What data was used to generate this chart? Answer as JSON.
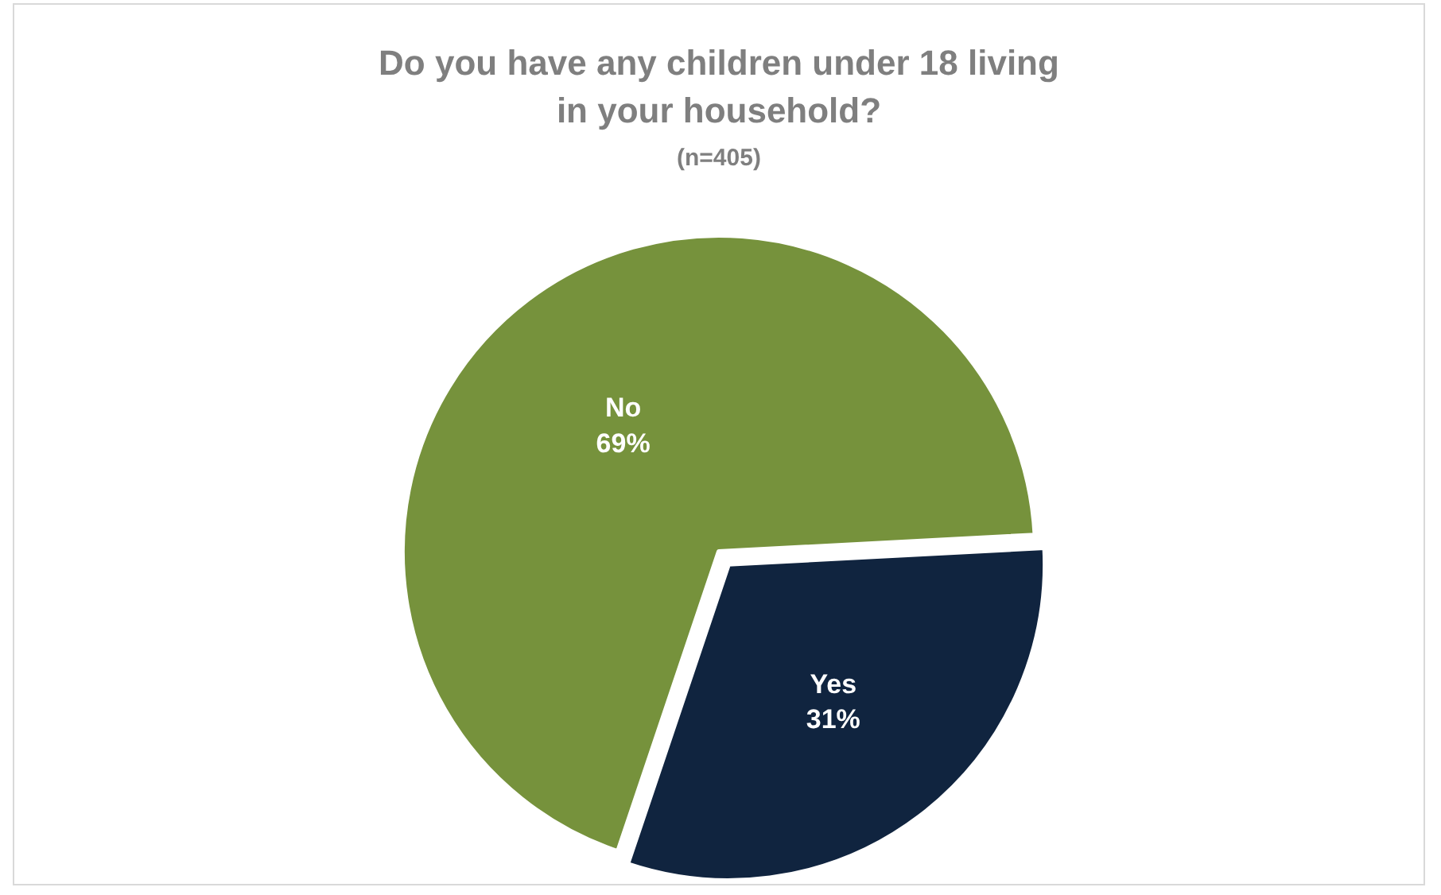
{
  "chart_data": {
    "type": "pie",
    "title": "Do you have any children under 18 living in your household?",
    "subtitle": "(n=405)",
    "categories": [
      "Yes",
      "No"
    ],
    "values": [
      31,
      69
    ],
    "colors": [
      "#10243f",
      "#76923c"
    ],
    "value_labels": [
      "31%",
      "69%"
    ],
    "legend": false
  }
}
